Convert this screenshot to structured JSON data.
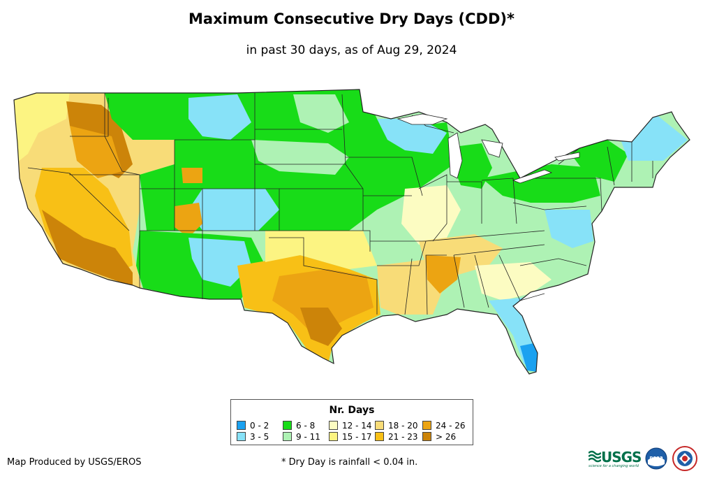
{
  "title": "Maximum Consecutive Dry Days (CDD)*",
  "subtitle": "in past 30 days, as of Aug 29, 2024",
  "legend": {
    "title": "Nr. Days",
    "items": [
      {
        "label": "0 - 2",
        "color": "#1aa1f0"
      },
      {
        "label": "3 - 5",
        "color": "#87e2f8"
      },
      {
        "label": "6 - 8",
        "color": "#18dc18"
      },
      {
        "label": "9 - 11",
        "color": "#aef2b4"
      },
      {
        "label": "12 - 14",
        "color": "#fcfcc2"
      },
      {
        "label": "15 - 17",
        "color": "#fcf482"
      },
      {
        "label": "18 - 20",
        "color": "#f8dc78"
      },
      {
        "label": "21 - 23",
        "color": "#f8c016"
      },
      {
        "label": "24 - 26",
        "color": "#eca412"
      },
      {
        "label": "> 26",
        "color": "#cc8409"
      }
    ]
  },
  "credit": "Map Produced by USGS/EROS",
  "footnote": "* Dry Day is rainfall < 0.04 in.",
  "logos": {
    "usgs_text": "USGS",
    "usgs_tagline": "science for a changing world",
    "noaa_text": "noaa",
    "nws_text": "NATIONAL WEATHER SERVICE"
  },
  "colors": {
    "border": "#222222",
    "lake": "#ffffff"
  }
}
